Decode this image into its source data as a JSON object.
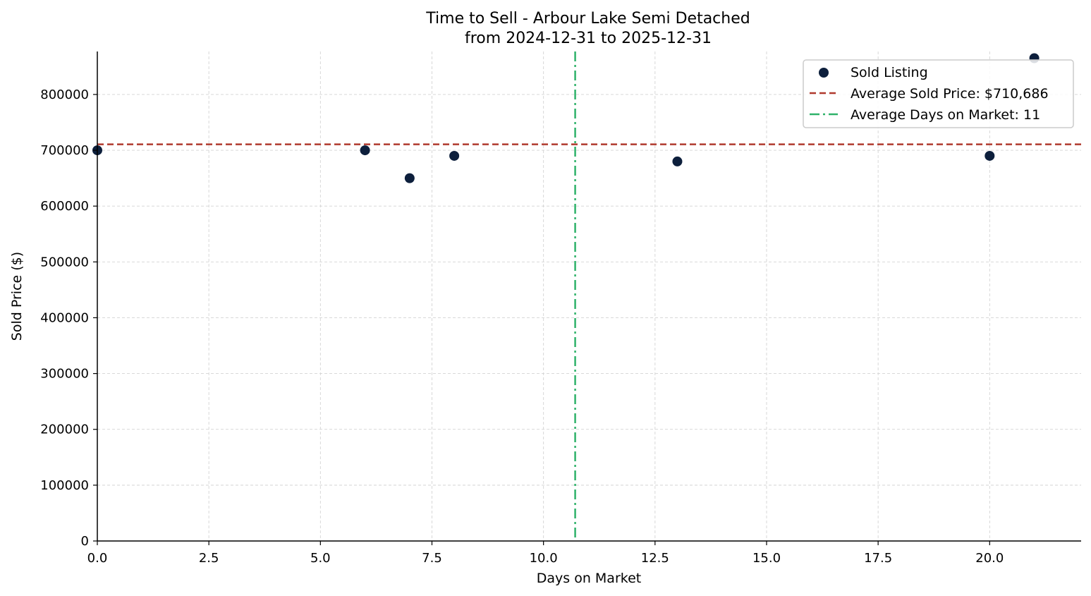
{
  "chart_data": {
    "type": "scatter",
    "title": "Time to Sell - Arbour Lake Semi Detached",
    "subtitle": "from 2024-12-31 to 2025-12-31",
    "xlabel": "Days on Market",
    "ylabel": "Sold Price ($)",
    "xlim": [
      0,
      22.05
    ],
    "ylim": [
      0,
      877000
    ],
    "x_ticks": [
      0.0,
      2.5,
      5.0,
      7.5,
      10.0,
      12.5,
      15.0,
      17.5,
      20.0
    ],
    "x_tick_labels": [
      "0.0",
      "2.5",
      "5.0",
      "7.5",
      "10.0",
      "12.5",
      "15.0",
      "17.5",
      "20.0"
    ],
    "y_ticks": [
      0,
      100000,
      200000,
      300000,
      400000,
      500000,
      600000,
      700000,
      800000
    ],
    "y_tick_labels": [
      "0",
      "100000",
      "200000",
      "300000",
      "400000",
      "500000",
      "600000",
      "700000",
      "800000"
    ],
    "grid": true,
    "legend_position": "top-right",
    "series": [
      {
        "name": "Sold Listing",
        "color": "#0d1f3c",
        "points": [
          {
            "x": 0,
            "y": 700000
          },
          {
            "x": 6,
            "y": 700000
          },
          {
            "x": 7,
            "y": 650000
          },
          {
            "x": 8,
            "y": 690000
          },
          {
            "x": 13,
            "y": 680000
          },
          {
            "x": 20,
            "y": 690000
          },
          {
            "x": 21,
            "y": 865000
          }
        ]
      }
    ],
    "reference_lines": [
      {
        "orientation": "horizontal",
        "value": 710686,
        "label": "Average Sold Price: $710,686",
        "color": "#b03a2e",
        "style": "dashed"
      },
      {
        "orientation": "vertical",
        "value": 10.71,
        "label": "Average Days on Market: 11",
        "color": "#2fb26a",
        "style": "dash-dot"
      }
    ]
  }
}
